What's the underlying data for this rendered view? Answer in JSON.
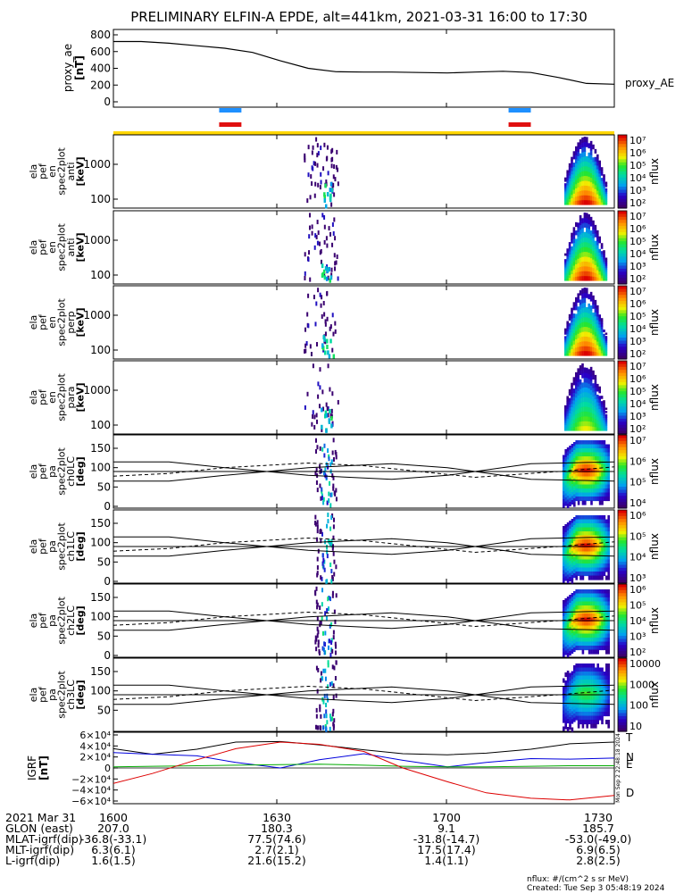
{
  "title": "PRELIMINARY ELFIN-A EPDE, alt=441km, 2021-03-31 16:00 to 17:30",
  "panels": {
    "ae": {
      "ylabel": [
        "proxy_ae",
        "[nT]"
      ],
      "legend": "proxy_AE",
      "ticks": [
        "800",
        "600",
        "400",
        "200",
        "0"
      ]
    },
    "en": [
      {
        "ylabel": [
          "ela",
          "pef",
          "en",
          "spec2plot",
          "anti",
          "[keV]"
        ],
        "ticks": [
          "1000",
          "100"
        ]
      },
      {
        "ylabel": [
          "ela",
          "pef",
          "en",
          "spec2plot",
          "anti",
          "[keV]"
        ],
        "ticks": [
          "1000",
          "100"
        ]
      },
      {
        "ylabel": [
          "ela",
          "pef",
          "en",
          "spec2plot",
          "perp",
          "[keV]"
        ],
        "ticks": [
          "1000",
          "100"
        ]
      },
      {
        "ylabel": [
          "ela",
          "pef",
          "en",
          "spec2plot",
          "para",
          "[keV]"
        ],
        "ticks": [
          "1000",
          "100"
        ]
      }
    ],
    "pa": [
      {
        "ylabel": [
          "ela",
          "pef",
          "pa",
          "spec2plot",
          "ch0LC",
          "[deg]"
        ],
        "ticks": [
          "150",
          "100",
          "50",
          "0"
        ]
      },
      {
        "ylabel": [
          "ela",
          "pef",
          "pa",
          "spec2plot",
          "ch1LC",
          "[deg]"
        ],
        "ticks": [
          "150",
          "100",
          "50",
          "0"
        ]
      },
      {
        "ylabel": [
          "ela",
          "pef",
          "pa",
          "spec2plot",
          "ch2LC",
          "[deg]"
        ],
        "ticks": [
          "150",
          "100",
          "50",
          "0"
        ]
      },
      {
        "ylabel": [
          "ela",
          "pef",
          "pa",
          "spec2plot",
          "ch3LC",
          "[deg]"
        ],
        "ticks": [
          "150",
          "100",
          "50"
        ]
      }
    ],
    "igrf": {
      "ylabel": [
        "IGRF",
        "[nT]"
      ],
      "ticks": [
        "6×10⁴",
        "4×10⁴",
        "2×10⁴",
        "0",
        "−2×10⁴",
        "−4×10⁴",
        "−6×10⁴"
      ],
      "legend": [
        "T",
        "N",
        "E",
        "D"
      ],
      "legend_colors": [
        "#000000",
        "#0000dd",
        "#00aa00",
        "#dd0000"
      ]
    }
  },
  "colorbars": [
    {
      "label": "nflux",
      "ticks": [
        "10⁷",
        "10⁶",
        "10⁵",
        "10⁴",
        "10³",
        "10²"
      ]
    },
    {
      "label": "nflux",
      "ticks": [
        "10⁷",
        "10⁶",
        "10⁵",
        "10⁴",
        "10³",
        "10²"
      ]
    },
    {
      "label": "nflux",
      "ticks": [
        "10⁷",
        "10⁶",
        "10⁵",
        "10⁴",
        "10³",
        "10²"
      ]
    },
    {
      "label": "nflux",
      "ticks": [
        "10⁷",
        "10⁶",
        "10⁵",
        "10⁴",
        "10³",
        "10²"
      ]
    },
    {
      "label": "nflux",
      "ticks": [
        "10⁷",
        "10⁶",
        "10⁵",
        "10⁴"
      ]
    },
    {
      "label": "nflux",
      "ticks": [
        "10⁶",
        "10⁵",
        "10⁴",
        "10³"
      ]
    },
    {
      "label": "nflux",
      "ticks": [
        "10⁶",
        "10⁵",
        "10⁴",
        "10³",
        "10²"
      ]
    },
    {
      "label": "nflux",
      "ticks": [
        "10000",
        "1000",
        "100",
        "10"
      ]
    }
  ],
  "xaxis": {
    "ticks": [
      "1600",
      "1630",
      "1700",
      "1730"
    ],
    "rows": [
      {
        "label": "2021 Mar 31",
        "values": [
          "1600",
          "1630",
          "1700",
          "1730"
        ]
      },
      {
        "label": "GLON (east)",
        "values": [
          "207.0",
          "180.3",
          "9.1",
          "185.7"
        ]
      },
      {
        "label": "MLAT-igrf(dip)",
        "values": [
          "-36.8(-33.1)",
          "77.5(74.6)",
          "-31.8(-14.7)",
          "-53.0(-49.0)"
        ]
      },
      {
        "label": "MLT-igrf(dip)",
        "values": [
          "6.3(6.1)",
          "2.7(2.1)",
          "17.5(17.4)",
          "6.9(6.5)"
        ]
      },
      {
        "label": "L-igrf(dip)",
        "values": [
          "1.6(1.5)",
          "21.6(15.2)",
          "1.4(1.1)",
          "2.8(2.5)"
        ]
      }
    ]
  },
  "footer": {
    "units": "nflux: #/(cm^2 s sr MeV)",
    "created": "Created: Tue Sep  3 05:48:19 2024",
    "vertical_stamp": "Mon Sep  2 22:48:18 2024"
  },
  "colors": {
    "bar_blue": "#1e90ff",
    "bar_red": "#e01010",
    "bar_yellow": "#ffd700"
  },
  "chart_data": {
    "type": "heatmap",
    "title": "PRELIMINARY ELFIN-A EPDE, alt=441km, 2021-03-31 16:00 to 17:30",
    "x_range": [
      "16:00",
      "17:30"
    ],
    "proxy_ae": {
      "x_min": [
        0,
        5,
        10,
        15,
        20,
        25,
        30,
        35,
        40,
        45,
        50,
        55,
        60,
        65,
        70,
        75,
        80,
        85,
        90
      ],
      "values": [
        720,
        720,
        700,
        670,
        640,
        590,
        490,
        400,
        360,
        355,
        355,
        350,
        345,
        355,
        365,
        350,
        290,
        220,
        210
      ],
      "ylim": [
        0,
        800
      ]
    },
    "igrf": {
      "x_min": [
        0,
        7,
        15,
        22,
        30,
        37,
        45,
        52,
        60,
        67,
        75,
        82,
        90
      ],
      "T": [
        35000,
        25000,
        34000,
        47000,
        48000,
        42000,
        33000,
        26000,
        24000,
        27000,
        34000,
        44000,
        47000
      ],
      "N": [
        28000,
        25000,
        22000,
        10000,
        0,
        15000,
        26000,
        14000,
        2000,
        10000,
        17000,
        16000,
        18000
      ],
      "E": [
        2000,
        3000,
        4000,
        5000,
        6000,
        7000,
        5000,
        3000,
        2000,
        2000,
        3000,
        4000,
        4000
      ],
      "D": [
        -28000,
        -10000,
        15000,
        35000,
        47000,
        43000,
        30000,
        0,
        -25000,
        -45000,
        -55000,
        -58000,
        -50000
      ],
      "ylim": [
        -60000,
        60000
      ]
    },
    "science_zones_min": [
      [
        19,
        23
      ],
      [
        71,
        75
      ]
    ]
  }
}
